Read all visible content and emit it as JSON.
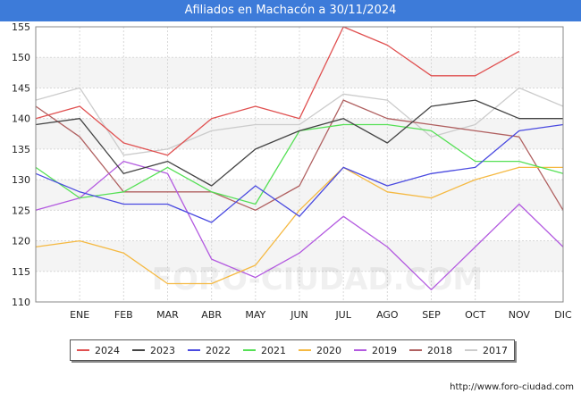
{
  "title": "Afiliados en Machacón a 30/11/2024",
  "source": "http://www.foro-ciudad.com",
  "watermark": "FORO-CIUDAD.COM",
  "chart_data": {
    "type": "line",
    "title": "Afiliados en Machacón a 30/11/2024",
    "xlabel": "",
    "ylabel": "",
    "ylim": [
      110,
      155
    ],
    "yticks": [
      110,
      115,
      120,
      125,
      130,
      135,
      140,
      145,
      150,
      155
    ],
    "categories": [
      "",
      "ENE",
      "FEB",
      "MAR",
      "ABR",
      "MAY",
      "JUN",
      "JUL",
      "AGO",
      "SEP",
      "OCT",
      "NOV",
      "DIC"
    ],
    "grid": true,
    "legend_position": "bottom",
    "series": [
      {
        "name": "2024",
        "color": "#e05050",
        "values": [
          140,
          142,
          136,
          134,
          140,
          142,
          140,
          155,
          152,
          147,
          147,
          151,
          null
        ]
      },
      {
        "name": "2023",
        "color": "#444444",
        "values": [
          139,
          140,
          131,
          133,
          129,
          135,
          138,
          140,
          136,
          142,
          143,
          140,
          140
        ]
      },
      {
        "name": "2022",
        "color": "#4a4ae0",
        "values": [
          131,
          128,
          126,
          126,
          123,
          129,
          124,
          132,
          129,
          131,
          132,
          138,
          139
        ]
      },
      {
        "name": "2021",
        "color": "#55e055",
        "values": [
          132,
          127,
          128,
          132,
          128,
          126,
          138,
          139,
          139,
          138,
          133,
          133,
          131
        ]
      },
      {
        "name": "2020",
        "color": "#f5b942",
        "values": [
          119,
          120,
          118,
          113,
          113,
          116,
          125,
          132,
          128,
          127,
          130,
          132,
          132
        ]
      },
      {
        "name": "2019",
        "color": "#b35ae0",
        "values": [
          125,
          127,
          133,
          131,
          117,
          114,
          118,
          124,
          119,
          112,
          119,
          126,
          119
        ]
      },
      {
        "name": "2018",
        "color": "#b06060",
        "values": [
          142,
          137,
          128,
          128,
          128,
          125,
          129,
          143,
          140,
          139,
          138,
          137,
          125
        ]
      },
      {
        "name": "2017",
        "color": "#cccccc",
        "values": [
          143,
          145,
          134,
          135,
          138,
          139,
          139,
          144,
          143,
          137,
          139,
          145,
          142
        ]
      }
    ]
  }
}
